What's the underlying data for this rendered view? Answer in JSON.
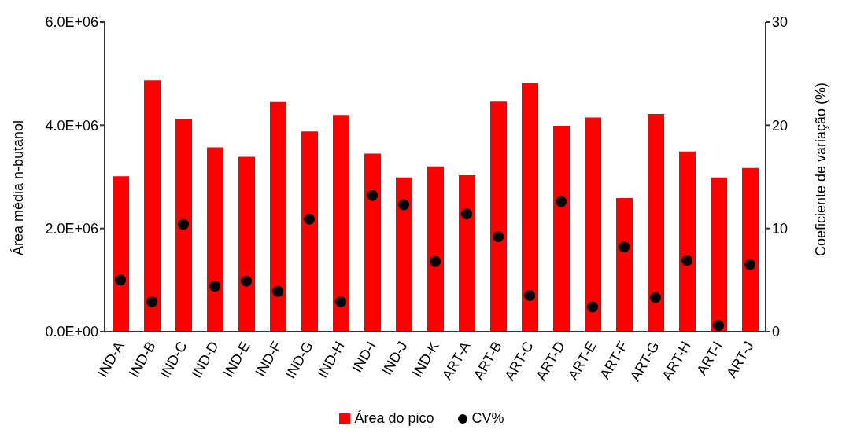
{
  "chart_data": {
    "type": "bar",
    "ylabel": "Área média n-butanol",
    "y2label": "Coeficiente de variação (%)",
    "categories": [
      "IND-A",
      "IND-B",
      "IND-C",
      "IND-D",
      "IND-E",
      "IND-F",
      "IND-G",
      "IND-H",
      "IND-I",
      "IND-J",
      "IND-K",
      "ART-A",
      "ART-B",
      "ART-C",
      "ART-D",
      "ART-E",
      "ART-F",
      "ART-G",
      "ART-H",
      "ART-I",
      "ART-J"
    ],
    "series": [
      {
        "name": "Área do pico",
        "color": "#ff0000",
        "values": [
          3010000,
          4870000,
          4120000,
          3570000,
          3390000,
          4450000,
          3880000,
          4200000,
          3450000,
          2990000,
          3200000,
          3030000,
          4460000,
          4820000,
          3990000,
          4150000,
          2590000,
          4220000,
          3490000,
          2990000,
          3170000
        ]
      },
      {
        "name": "CV%",
        "type": "scatter",
        "axis": "y2",
        "color": "#000000",
        "values": [
          5.0,
          2.9,
          10.4,
          4.4,
          4.9,
          3.9,
          10.9,
          2.9,
          13.2,
          12.3,
          6.8,
          11.4,
          9.2,
          3.5,
          12.6,
          2.4,
          8.2,
          3.3,
          6.9,
          0.6,
          6.5
        ]
      }
    ],
    "ylim": [
      0,
      6000000
    ],
    "yticks": [
      {
        "value": 0,
        "label": "0.0E+00"
      },
      {
        "value": 2000000,
        "label": "2.0E+06"
      },
      {
        "value": 4000000,
        "label": "4.0E+06"
      },
      {
        "value": 6000000,
        "label": "6.0E+06"
      }
    ],
    "y2lim": [
      0,
      30
    ],
    "y2ticks": [
      0,
      10,
      20,
      30
    ],
    "marker": "circle",
    "grid": false,
    "legend": "bottom"
  }
}
